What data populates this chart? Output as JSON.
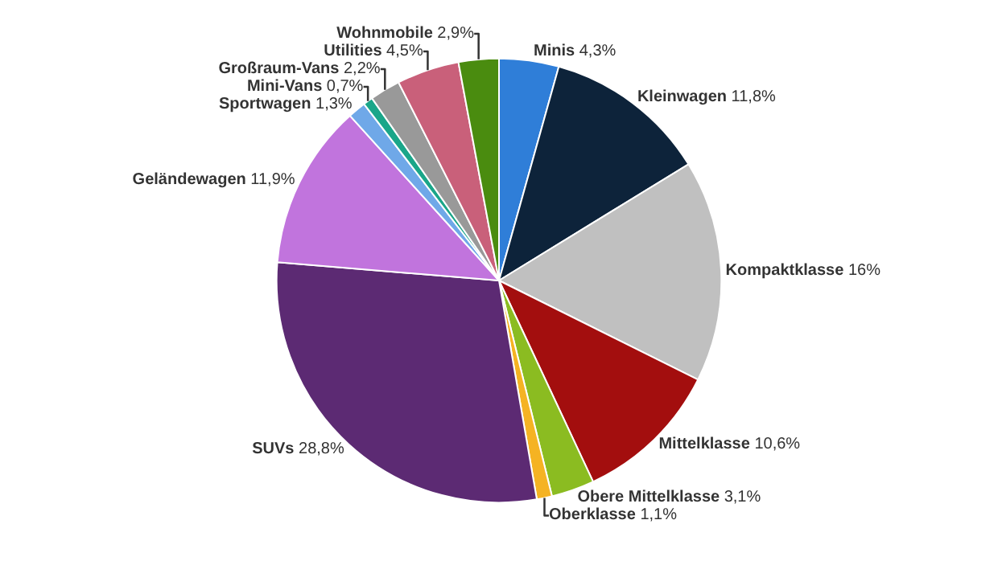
{
  "chart_data": {
    "type": "pie",
    "categories": [
      "Minis",
      "Kleinwagen",
      "Kompaktklasse",
      "Mittelklasse",
      "Obere Mittelklasse",
      "Oberklasse",
      "SUVs",
      "Geländewagen",
      "Sportwagen",
      "Mini-Vans",
      "Großraum-Vans",
      "Utilities",
      "Wohnmobile"
    ],
    "values": [
      4.3,
      11.8,
      16,
      10.6,
      3.1,
      1.1,
      28.8,
      11.9,
      1.3,
      0.7,
      2.2,
      4.5,
      2.9
    ],
    "value_labels": [
      "4,3%",
      "11,8%",
      "16%",
      "10,6%",
      "3,1%",
      "1,1%",
      "28,8%",
      "11,9%",
      "1,3%",
      "0,7%",
      "2,2%",
      "4,5%",
      "2,9%"
    ],
    "colors": [
      "#2f7ed8",
      "#0d233a",
      "#c0c0c0",
      "#a30e0e",
      "#8bbc21",
      "#f5b323",
      "#5c2a73",
      "#c174dd",
      "#6fa8e8",
      "#1aa689",
      "#999999",
      "#c9607a",
      "#4a8c0f"
    ],
    "legend": false
  }
}
